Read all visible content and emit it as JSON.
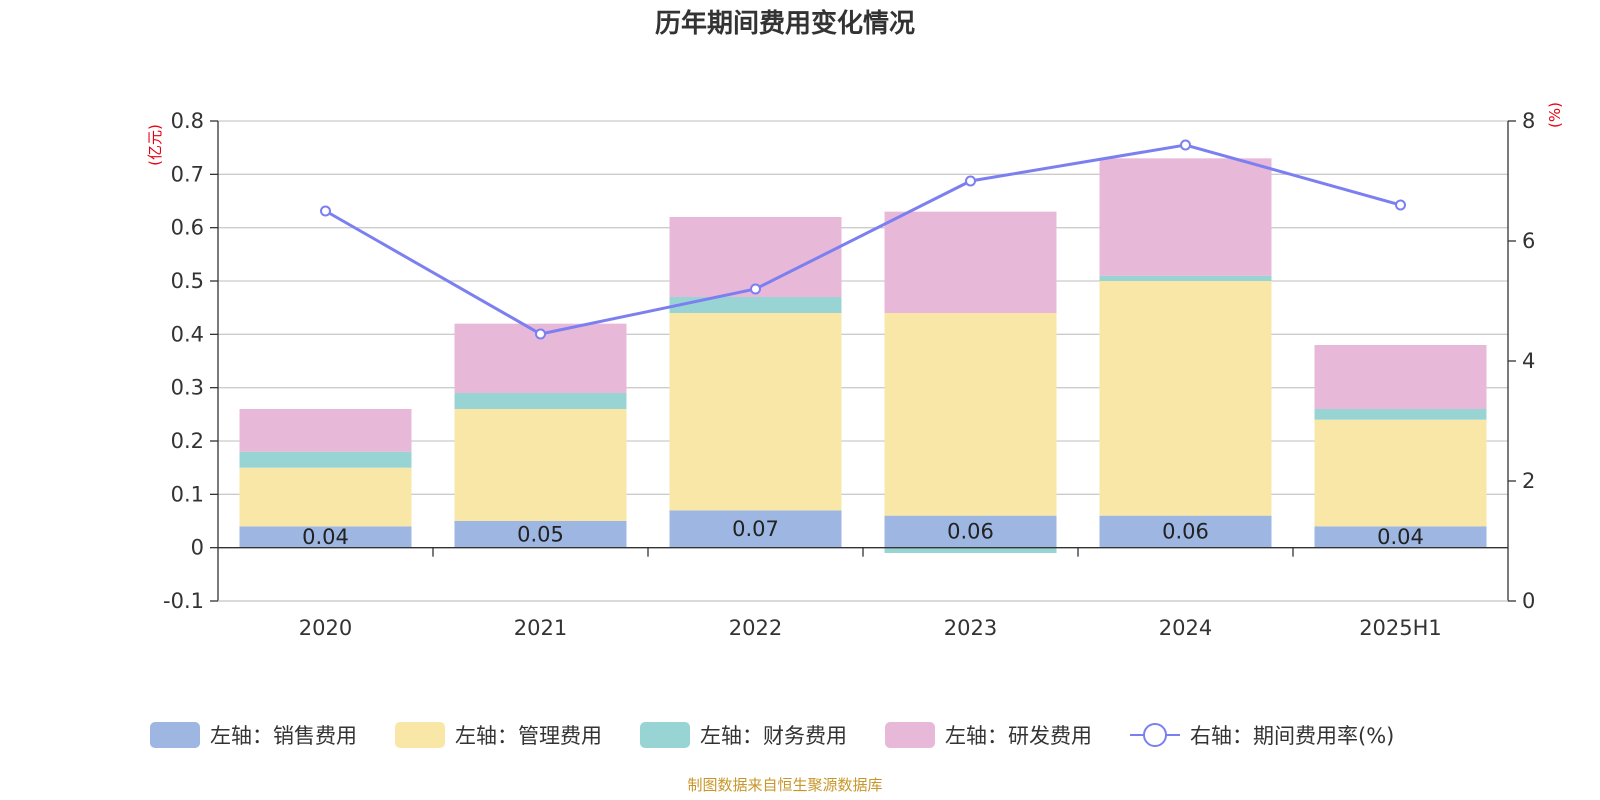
{
  "chart_data": {
    "type": "bar",
    "title": "历年期间费用变化情况",
    "categories": [
      "2020",
      "2021",
      "2022",
      "2023",
      "2024",
      "2025H1"
    ],
    "left_axis": {
      "unit": "(亿元)",
      "ylim": [
        -0.1,
        0.8
      ],
      "ticks": [
        "-0.1",
        "0",
        "0.1",
        "0.2",
        "0.3",
        "0.4",
        "0.5",
        "0.6",
        "0.7",
        "0.8"
      ],
      "tick_values": [
        -0.1,
        0,
        0.1,
        0.2,
        0.3,
        0.4,
        0.5,
        0.6,
        0.7,
        0.8
      ]
    },
    "right_axis": {
      "unit": "(%)",
      "ylim": [
        0,
        8
      ],
      "ticks": [
        "0",
        "2",
        "4",
        "6",
        "8"
      ],
      "tick_values": [
        0,
        2,
        4,
        6,
        8
      ]
    },
    "series": [
      {
        "name": "左轴：销售费用",
        "axis": "left",
        "kind": "bar",
        "color": "#9db6e2",
        "values": [
          0.04,
          0.05,
          0.07,
          0.06,
          0.06,
          0.04
        ],
        "labels": [
          "0.04",
          "0.05",
          "0.07",
          "0.06",
          "0.06",
          "0.04"
        ]
      },
      {
        "name": "左轴：管理费用",
        "axis": "left",
        "kind": "bar",
        "color": "#f8e7a6",
        "values": [
          0.11,
          0.21,
          0.37,
          0.38,
          0.44,
          0.2
        ]
      },
      {
        "name": "左轴：财务费用",
        "axis": "left",
        "kind": "bar",
        "color": "#98d4d4",
        "values": [
          0.03,
          0.03,
          0.03,
          -0.01,
          0.01,
          0.02
        ]
      },
      {
        "name": "左轴：研发费用",
        "axis": "left",
        "kind": "bar",
        "color": "#e8b8d8",
        "values": [
          0.08,
          0.13,
          0.15,
          0.19,
          0.22,
          0.12
        ]
      },
      {
        "name": "右轴：期间费用率(%)",
        "axis": "right",
        "kind": "line",
        "color": "#7b7ff0",
        "values": [
          6.5,
          4.45,
          5.2,
          7.0,
          7.6,
          6.6
        ]
      }
    ],
    "grid": true,
    "legend": "bottom",
    "source": "制图数据来自恒生聚源数据库"
  }
}
